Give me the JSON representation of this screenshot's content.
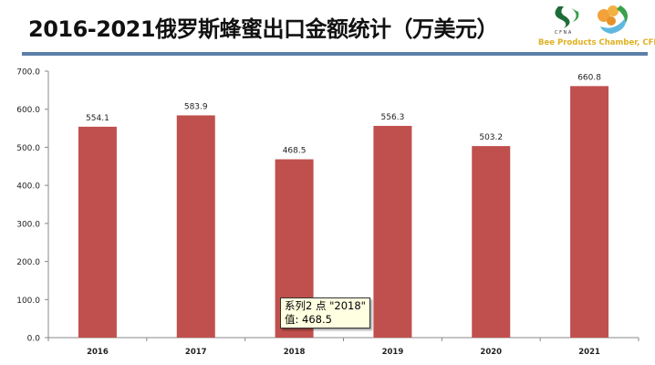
{
  "title": "2016-2021俄罗斯蜂蜜出口金额统计（万美元）",
  "logo": {
    "text": "Bee Products Chamber, CFNA",
    "letters": "CFNA"
  },
  "colors": {
    "bar": "#c0504d",
    "rule": "#5b7fa8",
    "logo_text": "#e0b020"
  },
  "tooltip": {
    "line1": "系列2 点 \"2018\"",
    "line2": "值: 468.5"
  },
  "chart_data": {
    "type": "bar",
    "title": "2016-2021俄罗斯蜂蜜出口金额统计（万美元）",
    "categories": [
      "2016",
      "2017",
      "2018",
      "2019",
      "2020",
      "2021"
    ],
    "values": [
      554.1,
      583.9,
      468.5,
      556.3,
      503.2,
      660.8
    ],
    "data_labels": [
      "554.1",
      "583.9",
      "468.5",
      "556.3",
      "503.2",
      "660.8"
    ],
    "ylim": [
      0,
      700
    ],
    "yticks": [
      "0.0",
      "100.0",
      "200.0",
      "300.0",
      "400.0",
      "500.0",
      "600.0",
      "700.0"
    ],
    "grid": false,
    "legend": "none",
    "xlabel": "",
    "ylabel": ""
  }
}
